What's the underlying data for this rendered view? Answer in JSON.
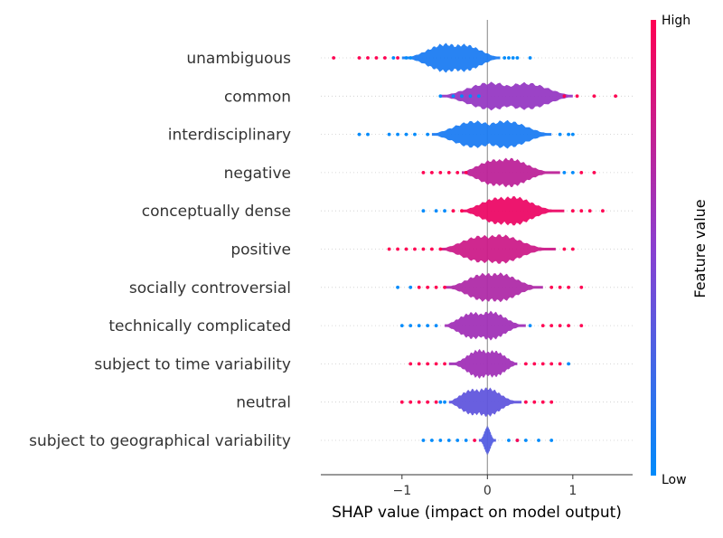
{
  "chart_data": {
    "type": "violin",
    "xlabel": "SHAP value (impact on model output)",
    "xlim": [
      -1.95,
      1.7
    ],
    "x_ticks": [
      -1,
      0,
      1
    ],
    "x_tick_labels": [
      "−1",
      "0",
      "1"
    ],
    "colorbar": {
      "title": "Feature value",
      "high_label": "High",
      "low_label": "Low",
      "low_color": "#008bfb",
      "mid_color": "#8a3fd0",
      "high_color": "#ff0052"
    },
    "features": [
      {
        "name": "unambiguous",
        "dots_low": [
          -1.1,
          -0.95,
          -0.9,
          0.2,
          0.25,
          0.3,
          0.35,
          0.5
        ],
        "dots_high": [
          -1.8,
          -1.5,
          -1.4,
          -1.3,
          -1.2,
          -1.05
        ],
        "body_range": [
          -1.0,
          0.15
        ],
        "peaks": [
          -0.5,
          -0.25
        ],
        "color_value": 0.1
      },
      {
        "name": "common",
        "dots_low": [
          -0.55,
          -0.4,
          -0.3,
          -0.2,
          -0.1
        ],
        "dots_high": [
          0.9,
          1.05,
          1.25,
          1.5
        ],
        "body_range": [
          -0.55,
          1.0
        ],
        "peaks": [
          0.0,
          0.5
        ],
        "color_value": 0.55
      },
      {
        "name": "interdisciplinary",
        "dots_low": [
          -1.5,
          -1.4,
          -1.15,
          -1.05,
          -0.95,
          -0.85,
          -0.7,
          0.85,
          0.95,
          1.0
        ],
        "dots_high": [],
        "body_range": [
          -0.65,
          0.75
        ],
        "peaks": [
          -0.2,
          0.25
        ],
        "color_value": 0.1
      },
      {
        "name": "negative",
        "dots_low": [
          0.9,
          1.0
        ],
        "dots_high": [
          -0.75,
          -0.65,
          -0.55,
          -0.45,
          -0.35,
          -0.25,
          1.1,
          1.25
        ],
        "body_range": [
          -0.3,
          0.85
        ],
        "peaks": [
          0.05,
          0.25
        ],
        "color_value": 0.72
      },
      {
        "name": "conceptually dense",
        "dots_low": [
          -0.75,
          -0.6,
          -0.5
        ],
        "dots_high": [
          -0.4,
          -0.3,
          1.0,
          1.1,
          1.2,
          1.35
        ],
        "body_range": [
          -0.3,
          0.9
        ],
        "peaks": [
          0.1,
          0.3
        ],
        "color_value": 0.92
      },
      {
        "name": "positive",
        "dots_low": [],
        "dots_high": [
          -1.15,
          -1.05,
          -0.95,
          -0.85,
          -0.75,
          -0.65,
          -0.55,
          0.9,
          1.0
        ],
        "body_range": [
          -0.55,
          0.8
        ],
        "peaks": [
          -0.1,
          0.15
        ],
        "color_value": 0.78
      },
      {
        "name": "socially controversial",
        "dots_low": [
          -1.05,
          -0.9
        ],
        "dots_high": [
          -0.8,
          -0.7,
          -0.6,
          -0.5,
          0.75,
          0.85,
          0.95,
          1.1
        ],
        "body_range": [
          -0.5,
          0.65
        ],
        "peaks": [
          -0.05,
          0.15
        ],
        "color_value": 0.66
      },
      {
        "name": "technically complicated",
        "dots_low": [
          -1.0,
          -0.9,
          -0.8,
          -0.7,
          -0.6,
          0.5
        ],
        "dots_high": [
          0.65,
          0.75,
          0.85,
          0.95,
          1.1
        ],
        "body_range": [
          -0.5,
          0.45
        ],
        "peaks": [
          -0.2,
          0.05
        ],
        "color_value": 0.6
      },
      {
        "name": "subject to time variability",
        "dots_low": [
          0.95
        ],
        "dots_high": [
          -0.9,
          -0.8,
          -0.7,
          -0.6,
          -0.5,
          0.45,
          0.55,
          0.65,
          0.75,
          0.85
        ],
        "body_range": [
          -0.45,
          0.35
        ],
        "peaks": [
          -0.1,
          0.1
        ],
        "color_value": 0.6
      },
      {
        "name": "neutral",
        "dots_low": [
          -0.55,
          -0.5
        ],
        "dots_high": [
          -1.0,
          -0.9,
          -0.8,
          -0.7,
          -0.6,
          0.45,
          0.55,
          0.65,
          0.75
        ],
        "body_range": [
          -0.45,
          0.4
        ],
        "peaks": [
          -0.2,
          0.0
        ],
        "color_value": 0.35
      },
      {
        "name": "subject to geographical variability",
        "dots_low": [
          -0.75,
          -0.65,
          -0.55,
          -0.45,
          -0.35,
          -0.25,
          0.25,
          0.35,
          0.45,
          0.6,
          0.75
        ],
        "dots_high": [
          -0.15,
          0.35
        ],
        "body_range": [
          -0.1,
          0.1
        ],
        "peaks": [
          0.0
        ],
        "color_value": 0.3
      }
    ]
  }
}
